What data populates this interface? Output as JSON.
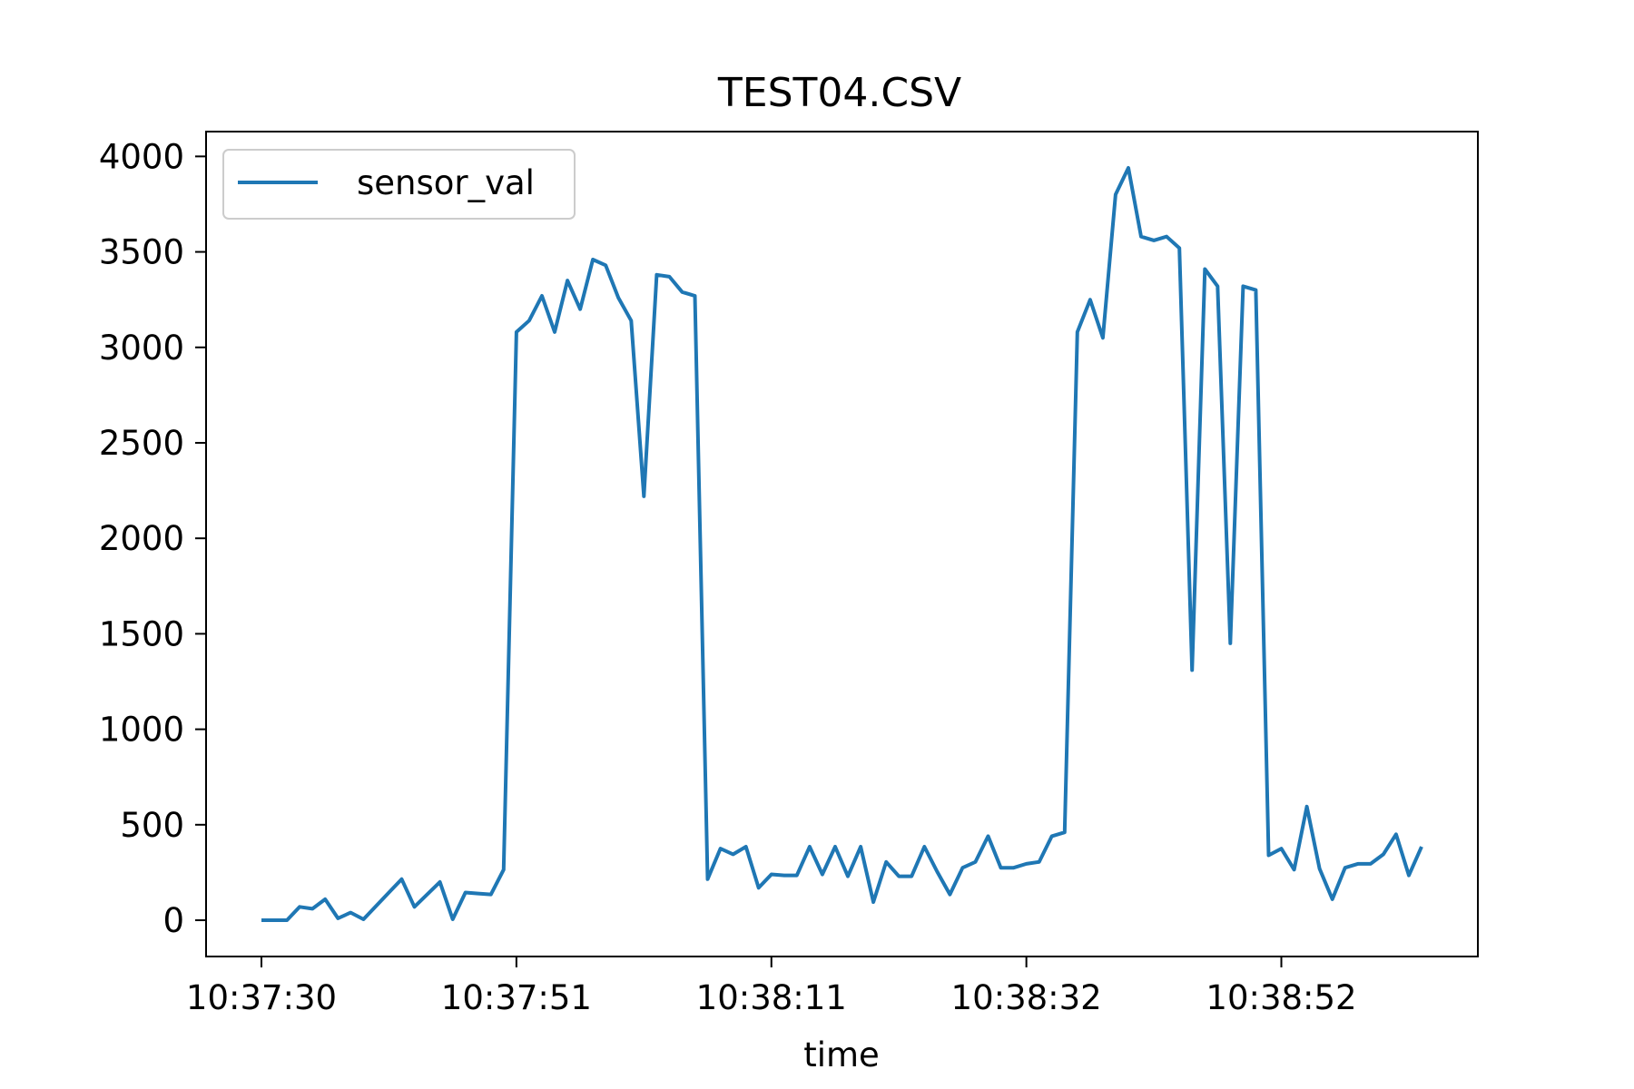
{
  "chart_data": {
    "type": "line",
    "title": "TEST04.CSV",
    "xlabel": "time",
    "ylabel": "",
    "ylim": [
      -190,
      4130
    ],
    "yticks": [
      0,
      500,
      1000,
      1500,
      2000,
      2500,
      3000,
      3500,
      4000
    ],
    "xticks": [
      "10:37:30",
      "10:37:51",
      "10:38:11",
      "10:38:32",
      "10:38:52"
    ],
    "xtick_index": [
      0,
      20,
      40,
      60,
      80
    ],
    "legend": {
      "placement": "upper-left",
      "entries": [
        "sensor_val"
      ]
    },
    "grid": false,
    "series": [
      {
        "name": "sensor_val",
        "color": "#1f77b4",
        "values": [
          0,
          0,
          0,
          70,
          60,
          110,
          10,
          40,
          5,
          75,
          145,
          215,
          70,
          135,
          200,
          5,
          145,
          140,
          135,
          265,
          3080,
          3140,
          3270,
          3080,
          3350,
          3200,
          3460,
          3430,
          3260,
          3140,
          2220,
          3380,
          3370,
          3290,
          3270,
          215,
          375,
          345,
          385,
          170,
          240,
          235,
          235,
          385,
          240,
          385,
          230,
          385,
          95,
          305,
          230,
          230,
          385,
          255,
          135,
          275,
          305,
          440,
          275,
          275,
          295,
          305,
          440,
          460,
          3080,
          3250,
          3050,
          3800,
          3940,
          3580,
          3560,
          3580,
          3520,
          1310,
          3410,
          3320,
          1450,
          3320,
          3300,
          340,
          375,
          265,
          595,
          270,
          110,
          275,
          295,
          295,
          345,
          450,
          235,
          385
        ]
      }
    ]
  }
}
